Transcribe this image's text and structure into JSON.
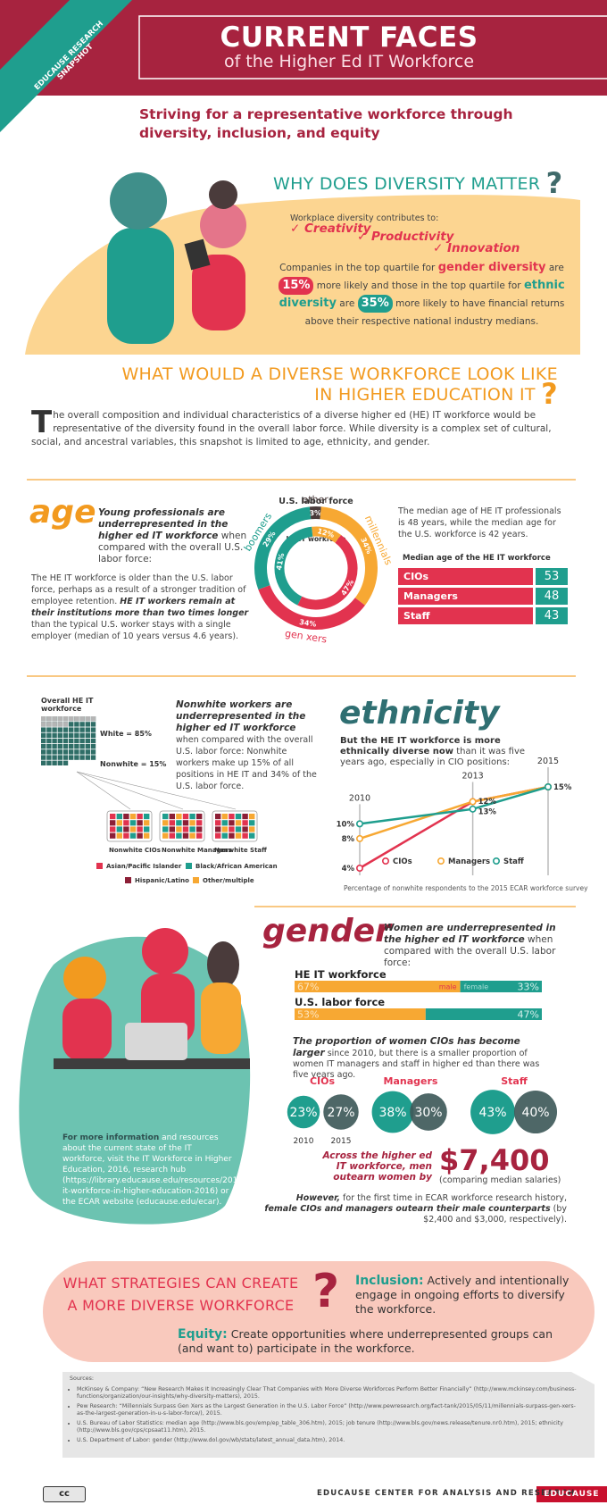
{
  "header": {
    "badge": "EDUCAUSE RESEARCH SNAPSHOT",
    "title": "CURRENT FACES",
    "subtitle": "of the Higher Ed IT Workforce"
  },
  "tagline": "Striving for a representative workforce through diversity, inclusion, and equity",
  "why": {
    "heading": "WHY DOES DIVERSITY MATTER",
    "mark": "?",
    "intro": "Workplace diversity contributes to:",
    "benefits": [
      "✓ Creativity",
      "✓ Productivity",
      "✓ Innovation"
    ],
    "stat": [
      "Companies in the top quartile for ",
      "gender diversity",
      " are ",
      "15%",
      " more likely and those  in the top quartile for ",
      "ethnic diversity",
      " are ",
      "35%",
      " more likely to have financial returns above their respective national industry medians."
    ]
  },
  "what": {
    "heading_line1": "WHAT WOULD A DIVERSE WORKFORCE LOOK LIKE",
    "heading_line2": "IN HIGHER EDUCATION IT",
    "mark": "?",
    "dropcap": "T",
    "paragraph": "he overall composition and individual characteristics of a diverse higher ed (HE) IT workforce would be representative of the diversity found in the overall labor force. While diversity is a complex set of cultural, social, and ancestral variables, this snapshot is limited to age, ethnicity, and gender."
  },
  "age": {
    "heading": "age",
    "lead_bold": "Young professionals are underrepresented in the higher ed IT workforce",
    "lead_rest": " when compared with the overall U.S. labor force:",
    "body1": "The HE IT workforce is older than the U.S. labor force, perhaps as a result of a stronger tradition of employee retention. ",
    "body_bold": "HE IT workers remain at their institutions more than two times longer",
    "body2": " than the typical U.S. worker stays with a single employer (median of 10 years versus 4.6 years).",
    "donut": {
      "outer_title": "U.S. labor force",
      "inner_title": "HE IT workforce",
      "groups": [
        {
          "name": "other",
          "color": "#4a3b3b",
          "us": {
            "value": 3,
            "label": "3%"
          },
          "he": null
        },
        {
          "name": "millennials",
          "color": "#f7a833",
          "us": {
            "value": 34,
            "label": "34%"
          },
          "he": {
            "value": 12,
            "label": "12%"
          }
        },
        {
          "name": "gen xers",
          "color": "#e2334f",
          "us": {
            "value": 34,
            "label": "34%"
          },
          "he": {
            "value": 47,
            "label": "47%"
          }
        },
        {
          "name": "boomers",
          "color": "#1f9e8e",
          "us": {
            "value": 29,
            "label": "29%"
          },
          "he": {
            "value": 41,
            "label": "41%"
          }
        }
      ]
    },
    "median_text": "The median age of HE IT professionals is 48 years, while the median age for the U.S. workforce is 42 years.",
    "median_title": "Median age of the HE IT workforce",
    "median_rows": [
      {
        "role": "CIOs",
        "age": 53
      },
      {
        "role": "Managers",
        "age": 48
      },
      {
        "role": "Staff",
        "age": 43
      }
    ]
  },
  "ethnicity": {
    "heading": "ethnicity",
    "waffle": {
      "title": "Overall HE IT workforce",
      "white_label": "White = 85%",
      "nonwhite_label": "Nonwhite = 15%",
      "white": 85,
      "nonwhite": 15
    },
    "groups": [
      "Nonwhite CIOs",
      "Nonwhite Managers",
      "Nonwhite Staff"
    ],
    "legend": [
      {
        "name": "Asian/Pacific Islander",
        "color": "#e2334f"
      },
      {
        "name": "Black/African American",
        "color": "#1f9e8e"
      },
      {
        "name": "Hispanic/Latino",
        "color": "#8c1f36"
      },
      {
        "name": "Other/multiple",
        "color": "#f7a833"
      }
    ],
    "note_bold": "Nonwhite workers are underrepresented in the higher ed IT workforce",
    "note_rest": " when compared with the overall U.S. labor force: Nonwhite workers make up 15% of all positions in HE IT and 34% of the U.S. labor force.",
    "lead_bold": "But the HE IT workforce is more ethnically diverse now",
    "lead_rest": " than it was five years ago, especially in CIO positions:",
    "trend": {
      "x": [
        2010,
        2013,
        2015
      ],
      "series": [
        {
          "name": "CIOs",
          "color": "#e2334f",
          "values": [
            4,
            13,
            15
          ]
        },
        {
          "name": "Managers",
          "color": "#f7a833",
          "values": [
            8,
            13,
            15
          ]
        },
        {
          "name": "Staff",
          "color": "#1f9e8e",
          "values": [
            10,
            12,
            15
          ]
        }
      ],
      "point_labels": [
        {
          "x": 2010,
          "value": 10,
          "label": "10%"
        },
        {
          "x": 2010,
          "value": 8,
          "label": "8%"
        },
        {
          "x": 2010,
          "value": 4,
          "label": "4%"
        },
        {
          "x": 2013,
          "value": 13,
          "label": "13%"
        },
        {
          "x": 2013,
          "value": 12,
          "label": "12%"
        },
        {
          "x": 2015,
          "value": 15,
          "label": "15%"
        }
      ],
      "caption": "Percentage of nonwhite respondents to the 2015 ECAR workforce survey"
    }
  },
  "gender": {
    "heading": "gender",
    "lead_bold": "Women are underrepresented in the higher ed IT workforce",
    "lead_rest": " when compared with the overall U.S. labor force:",
    "bar_legend": {
      "male": "male",
      "female": "female"
    },
    "bars": [
      {
        "name": "HE IT workforce",
        "male": {
          "value": 67,
          "label": "67%"
        },
        "female": {
          "value": 33,
          "label": "33%"
        }
      },
      {
        "name": "U.S. labor force",
        "male": {
          "value": 53,
          "label": "53%"
        },
        "female": {
          "value": 47,
          "label": "47%"
        }
      }
    ],
    "proportion_bold": "The proportion of women CIOs has become larger",
    "proportion_rest": " since 2010, but there is a smaller proportion of women IT managers and staff in higher ed than there was five years ago.",
    "years": [
      "2010",
      "2015"
    ],
    "roles": [
      {
        "name": "CIOs",
        "y2010": {
          "value": 23,
          "label": "23%"
        },
        "y2015": {
          "value": 27,
          "label": "27%"
        }
      },
      {
        "name": "Managers",
        "y2010": {
          "value": 38,
          "label": "38%"
        },
        "y2015": {
          "value": 30,
          "label": "30%"
        }
      },
      {
        "name": "Staff",
        "y2010": {
          "value": 43,
          "label": "43%"
        },
        "y2015": {
          "value": 40,
          "label": "40%"
        }
      }
    ],
    "pay_text": "Across the higher ed IT workforce, men outearn women by",
    "pay_gap": "$7,400",
    "pay_note": "(comparing median salaries)",
    "however_bold": "However,",
    "however_mid": " for the first time in ECAR workforce research history, ",
    "however_emph": "female CIOs and managers outearn their male counterparts",
    "however_end": " (by $2,400 and $3,000, respectively).",
    "info_bold": "For more information",
    "info_rest": " and resources about the current state of the IT workforce, visit the IT Workforce in Higher Education, 2016, research hub (https://library.educause.edu/resources/2016/3/the-it-workforce-in-higher-education-2016) or the ECAR website (educause.edu/ecar)."
  },
  "strategies": {
    "heading_line1": "WHAT STRATEGIES CAN CREATE",
    "heading_line2": "A MORE DIVERSE WORKFORCE",
    "mark": "?",
    "inclusion_term": "Inclusion:",
    "inclusion_text": " Actively and intentionally engage in ongoing efforts to diversify the workforce.",
    "equity_term": "Equity:",
    "equity_text": " Create opportunities where underrepresented groups can (and want to) participate in the workforce."
  },
  "sources": {
    "title": "Sources:",
    "items": [
      "McKinsey & Company: “New Research Makes It Increasingly Clear That Companies with More Diverse Workforces Perform Better Financially” (http://www.mckinsey.com/business-functions/organization/our-insights/why-diversity-matters), 2015.",
      "Pew Research: “Millennials Surpass Gen Xers as the Largest Generation in the U.S. Labor Force” (http://www.pewresearch.org/fact-tank/2015/05/11/millennials-surpass-gen-xers-as-the-largest-generation-in-u-s-labor-force/), 2015.",
      "U.S. Bureau of Labor Statistics: median age (http://www.bls.gov/emp/ep_table_306.htm), 2015; job tenure (http://www.bls.gov/news.release/tenure.nr0.htm), 2015; ethnicity (http://www.bls.gov/cps/cpsaat11.htm), 2015.",
      "U.S. Department of Labor: gender (http://www.dol.gov/wb/stats/latest_annual_data.htm), 2014."
    ]
  },
  "footer": {
    "license": "cc",
    "center": "EDUCAUSE CENTER FOR ANALYSIS AND RESEARCH",
    "logo": "EDUCAUSE"
  }
}
